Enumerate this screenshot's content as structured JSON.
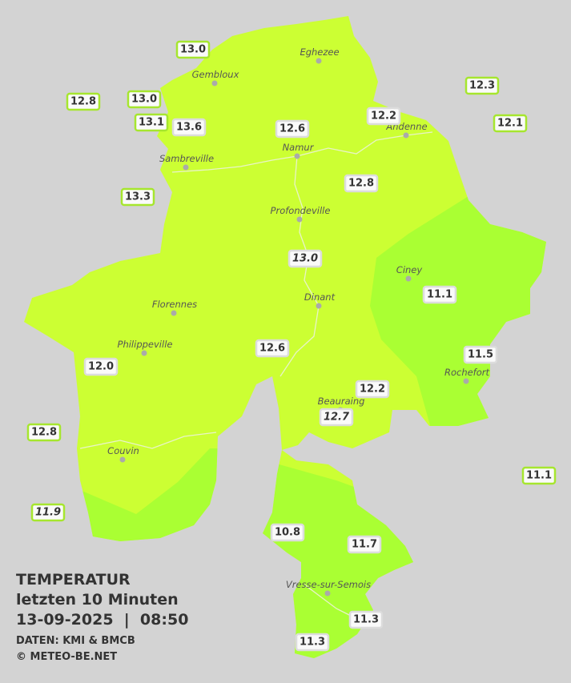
{
  "map": {
    "stations": [
      {
        "label": "13.0"
      },
      {
        "label": "12.8"
      },
      {
        "label": "13.0"
      },
      {
        "label": "13.1"
      },
      {
        "label": "13.6"
      },
      {
        "label": "12.6"
      },
      {
        "label": "12.2"
      },
      {
        "label": "12.3"
      },
      {
        "label": "12.1"
      },
      {
        "label": "13.3"
      },
      {
        "label": "12.8"
      },
      {
        "label": "13.0"
      },
      {
        "label": "11.1"
      },
      {
        "label": "12.6"
      },
      {
        "label": "12.0"
      },
      {
        "label": "11.5"
      },
      {
        "label": "12.2"
      },
      {
        "label": "12.7"
      },
      {
        "label": "12.8"
      },
      {
        "label": "11.1"
      },
      {
        "label": "11.9"
      },
      {
        "label": "10.8"
      },
      {
        "label": "11.7"
      },
      {
        "label": "11.3"
      },
      {
        "label": "11.3"
      }
    ],
    "cities": [
      "Eghezee",
      "Gembloux",
      "Andenne",
      "Namur",
      "Sambreville",
      "Profondeville",
      "Ciney",
      "Florennes",
      "Dinant",
      "Philippeville",
      "Rochefort",
      "Beauraing",
      "Couvin",
      "Vresse-sur-Semois"
    ],
    "legend": {
      "title": "TEMPERATUR",
      "period": "letzten 10 Minuten",
      "datetime": "13-09-2025  |  08:50",
      "source": "DATEN: KMI & BMCB",
      "copyright": "© METEO-BE.NET"
    }
  }
}
